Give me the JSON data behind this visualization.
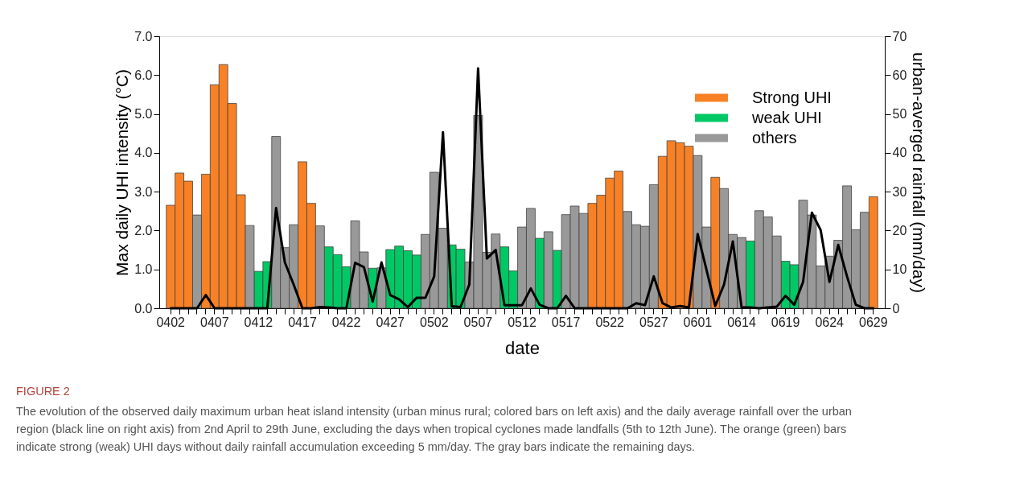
{
  "chart_data": {
    "type": "bar",
    "xlabel": "date",
    "ylabel": "Max daily UHI intensity (°C)",
    "y2label": "urban-averged rainfall (mm/day)",
    "categories": [
      "0402",
      null,
      null,
      null,
      null,
      "0407",
      null,
      null,
      null,
      null,
      "0412",
      null,
      null,
      null,
      null,
      "0417",
      null,
      null,
      null,
      null,
      "0422",
      null,
      null,
      null,
      null,
      "0427",
      null,
      null,
      null,
      null,
      "0502",
      null,
      null,
      null,
      null,
      "0507",
      null,
      null,
      null,
      null,
      "0512",
      null,
      null,
      null,
      null,
      "0517",
      null,
      null,
      null,
      null,
      "0522",
      null,
      null,
      null,
      null,
      "0527",
      null,
      null,
      null,
      null,
      "0601",
      null,
      null,
      null,
      null,
      "0614",
      null,
      null,
      null,
      null,
      "0619",
      null,
      null,
      null,
      null,
      "0624",
      null,
      null,
      null,
      null,
      "0629"
    ],
    "series": [
      {
        "name": "Strong UHI",
        "color": "#f98125",
        "values": [
          2.65,
          3.48,
          3.27,
          null,
          3.45,
          5.75,
          6.27,
          5.27,
          2.92,
          null,
          null,
          null,
          null,
          null,
          null,
          3.77,
          2.7,
          null,
          null,
          null,
          null,
          null,
          null,
          null,
          null,
          null,
          null,
          null,
          null,
          null,
          null,
          null,
          null,
          null,
          null,
          null,
          null,
          null,
          null,
          null,
          null,
          null,
          null,
          null,
          null,
          null,
          null,
          null,
          2.7,
          2.91,
          3.35,
          3.53,
          null,
          null,
          null,
          null,
          3.91,
          4.31,
          4.26,
          4.17,
          null,
          null,
          3.37,
          null,
          null,
          null,
          null,
          null,
          null,
          null,
          null,
          null,
          null,
          null,
          null,
          null,
          null,
          null,
          null,
          null,
          2.87
        ]
      },
      {
        "name": "weak UHI",
        "color": "#00c864",
        "values": [
          null,
          null,
          null,
          null,
          null,
          null,
          null,
          null,
          null,
          null,
          0.95,
          1.2,
          null,
          null,
          null,
          null,
          null,
          null,
          1.58,
          1.38,
          1.07,
          null,
          null,
          1.03,
          null,
          1.51,
          1.6,
          1.48,
          1.37,
          null,
          null,
          null,
          1.63,
          1.52,
          null,
          null,
          null,
          null,
          1.58,
          0.96,
          null,
          null,
          1.8,
          null,
          1.49,
          null,
          null,
          null,
          null,
          null,
          null,
          null,
          null,
          null,
          null,
          null,
          null,
          null,
          null,
          null,
          null,
          null,
          null,
          null,
          null,
          null,
          1.73,
          null,
          null,
          null,
          1.21,
          1.12,
          null,
          null,
          null,
          null,
          null,
          null,
          null,
          null,
          null
        ]
      },
      {
        "name": "others",
        "color": "#999999",
        "values": [
          null,
          null,
          null,
          2.4,
          null,
          null,
          null,
          null,
          null,
          2.13,
          null,
          null,
          4.42,
          1.56,
          2.15,
          null,
          null,
          2.12,
          null,
          null,
          null,
          2.25,
          1.45,
          null,
          1.04,
          null,
          null,
          null,
          null,
          1.9,
          3.5,
          2.06,
          null,
          null,
          1.19,
          4.96,
          1.44,
          1.91,
          null,
          null,
          2.09,
          2.57,
          null,
          1.97,
          null,
          2.41,
          2.63,
          2.44,
          null,
          null,
          null,
          null,
          2.49,
          2.15,
          2.11,
          3.18,
          null,
          null,
          null,
          null,
          3.93,
          2.09,
          null,
          3.08,
          1.9,
          1.82,
          null,
          2.51,
          2.35,
          1.86,
          null,
          null,
          2.78,
          2.4,
          1.09,
          1.34,
          1.75,
          3.15,
          2.02,
          2.47,
          null
        ]
      },
      {
        "type": "line",
        "axis": "y2",
        "color": "#000000",
        "values": [
          0,
          0,
          0,
          0,
          3.4,
          0,
          0,
          0,
          0,
          0,
          0,
          0,
          25.8,
          11.8,
          6.1,
          0,
          0,
          0.3,
          0.2,
          0,
          0,
          11.7,
          10.6,
          1.7,
          11.8,
          3.4,
          2.3,
          0.3,
          2.7,
          2.7,
          8.2,
          45.3,
          0.5,
          0.3,
          6.1,
          61.7,
          12.8,
          15.0,
          0.8,
          0.8,
          0.8,
          5.1,
          0.9,
          0,
          0,
          3.2,
          0,
          0,
          0,
          0,
          0,
          0,
          0,
          1.3,
          0.8,
          8.2,
          1.3,
          0.2,
          0.6,
          0.2,
          19.1,
          9.9,
          0.6,
          6.1,
          17.2,
          0.2,
          0.2,
          0,
          0.2,
          0.4,
          3.2,
          0.9,
          6.8,
          24.6,
          20.1,
          6.8,
          16.3,
          8.2,
          0.9,
          0,
          0
        ]
      }
    ],
    "ylim": [
      0,
      7
    ],
    "yticks": [
      {
        "value": 0,
        "label": "0.0"
      },
      {
        "value": 1,
        "label": "1.0"
      },
      {
        "value": 2,
        "label": "2.0"
      },
      {
        "value": 3,
        "label": "3.0"
      },
      {
        "value": 4,
        "label": "4.0"
      },
      {
        "value": 5,
        "label": "5.0"
      },
      {
        "value": 6,
        "label": "6.0"
      },
      {
        "value": 7,
        "label": "7.0"
      }
    ],
    "y2lim": [
      0,
      70
    ],
    "y2ticks": [
      0,
      10,
      20,
      30,
      40,
      50,
      60,
      70
    ],
    "legend": "top right",
    "annotations": [
      "FIGURE 2",
      "The evolution of the observed daily maximum urban heat island intensity (urban minus rural; colored bars on left axis) and the daily average rainfall over the urban region (black line on right axis) from 2nd April to 29th June, excluding the days when tropical cyclones made landfalls (5th to 12th June). The orange (green) bars indicate strong (weak) UHI days without daily rainfall accumulation exceeding 5 mm/day. The gray bars indicate the remaining days."
    ]
  }
}
